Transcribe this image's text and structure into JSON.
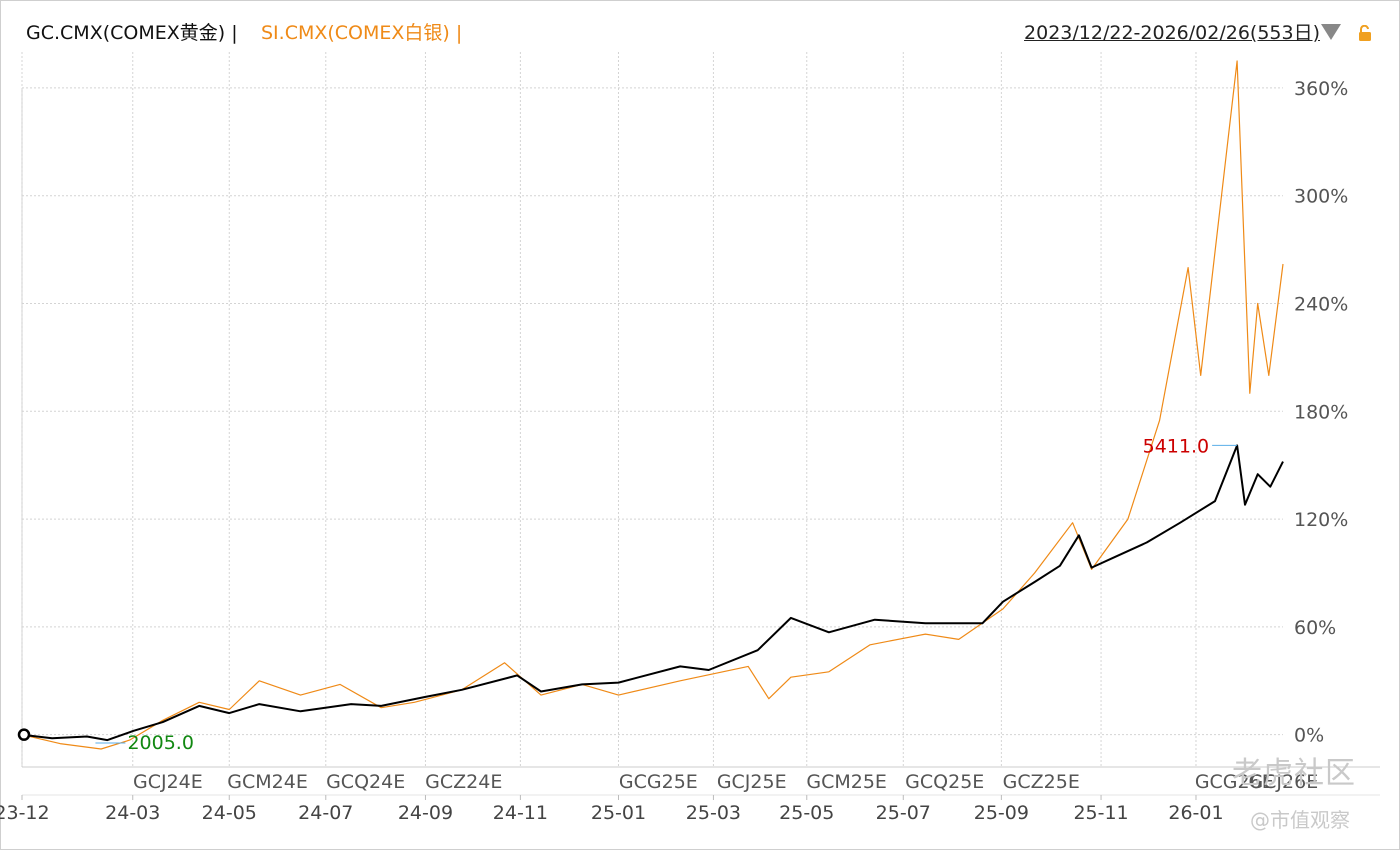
{
  "header": {
    "gold_title": "GC.CMX(COMEX黄金) |",
    "silver_title": "SI.CMX(COMEX白银) |",
    "range_label": "2023/12/22-2026/02/26(553日)",
    "dropdown_icon": "chevron-down-icon",
    "lock_icon": "unlock-icon"
  },
  "watermark": {
    "line1": "老虎社区",
    "line2": "@市值观察"
  },
  "chart_data": {
    "type": "line",
    "y_ticks": [
      0,
      60,
      120,
      180,
      240,
      300,
      360
    ],
    "y_tick_labels": [
      "0%",
      "60%",
      "120%",
      "180%",
      "240%",
      "300%",
      "360%"
    ],
    "ylim": [
      -18,
      380
    ],
    "xlim": [
      "2023-12-22",
      "2026-02-26"
    ],
    "x_ticks": [
      {
        "date": "2023-12-22",
        "label": "23-12"
      },
      {
        "date": "2024-03-01",
        "label": "24-03"
      },
      {
        "date": "2024-05-01",
        "label": "24-05"
      },
      {
        "date": "2024-07-01",
        "label": "24-07"
      },
      {
        "date": "2024-09-02",
        "label": "24-09"
      },
      {
        "date": "2024-11-01",
        "label": "24-11"
      },
      {
        "date": "2025-01-02",
        "label": "25-01"
      },
      {
        "date": "2025-03-03",
        "label": "25-03"
      },
      {
        "date": "2025-05-01",
        "label": "25-05"
      },
      {
        "date": "2025-07-01",
        "label": "25-07"
      },
      {
        "date": "2025-09-01",
        "label": "25-09"
      },
      {
        "date": "2025-11-03",
        "label": "25-11"
      },
      {
        "date": "2026-01-02",
        "label": "26-01"
      }
    ],
    "contract_markers": [
      {
        "date": "2024-03-27",
        "label": "GCJ24E"
      },
      {
        "date": "2024-05-29",
        "label": "GCM24E"
      },
      {
        "date": "2024-07-30",
        "label": "GCQ24E"
      },
      {
        "date": "2024-09-30",
        "label": "GCZ24E"
      },
      {
        "date": "2025-01-31",
        "label": "GCG25E"
      },
      {
        "date": "2025-03-31",
        "label": "GCJ25E"
      },
      {
        "date": "2025-05-30",
        "label": "GCM25E"
      },
      {
        "date": "2025-07-31",
        "label": "GCQ25E"
      },
      {
        "date": "2025-09-30",
        "label": "GCZ25E"
      },
      {
        "date": "2026-01-30",
        "label": "GCG26E"
      },
      {
        "date": "2026-03-02",
        "label": "GCJ26E"
      }
    ],
    "series": [
      {
        "name": "GC.CMX(COMEX黄金)",
        "color": "#000000",
        "points": [
          [
            "2023-12-22",
            0
          ],
          [
            "2024-01-10",
            -2
          ],
          [
            "2024-02-01",
            -1
          ],
          [
            "2024-02-14",
            -3
          ],
          [
            "2024-03-01",
            2
          ],
          [
            "2024-03-20",
            7
          ],
          [
            "2024-04-12",
            16
          ],
          [
            "2024-05-01",
            12
          ],
          [
            "2024-05-20",
            17
          ],
          [
            "2024-06-15",
            13
          ],
          [
            "2024-07-17",
            17
          ],
          [
            "2024-08-05",
            16
          ],
          [
            "2024-09-02",
            21
          ],
          [
            "2024-09-25",
            25
          ],
          [
            "2024-10-30",
            33
          ],
          [
            "2024-11-14",
            24
          ],
          [
            "2024-12-10",
            28
          ],
          [
            "2025-01-02",
            29
          ],
          [
            "2025-02-10",
            38
          ],
          [
            "2025-02-28",
            36
          ],
          [
            "2025-03-31",
            47
          ],
          [
            "2025-04-21",
            65
          ],
          [
            "2025-05-15",
            57
          ],
          [
            "2025-06-13",
            64
          ],
          [
            "2025-07-15",
            62
          ],
          [
            "2025-08-20",
            62
          ],
          [
            "2025-09-02",
            74
          ],
          [
            "2025-09-22",
            85
          ],
          [
            "2025-10-08",
            94
          ],
          [
            "2025-10-20",
            111
          ],
          [
            "2025-10-28",
            93
          ],
          [
            "2025-11-12",
            99
          ],
          [
            "2025-12-02",
            107
          ],
          [
            "2025-12-23",
            118
          ],
          [
            "2026-01-14",
            130
          ],
          [
            "2026-01-28",
            161
          ],
          [
            "2026-02-02",
            128
          ],
          [
            "2026-02-10",
            145
          ],
          [
            "2026-02-18",
            138
          ],
          [
            "2026-02-26",
            152
          ]
        ],
        "extreme_labels": [
          {
            "date": "2026-01-28",
            "value": 161,
            "label": "5411.0",
            "color": "#cc0000"
          },
          {
            "date": "2024-02-14",
            "value": -3,
            "label": "2005.0",
            "color": "#118811"
          }
        ]
      },
      {
        "name": "SI.CMX(COMEX白银)",
        "color": "#ef8a17",
        "points": [
          [
            "2023-12-22",
            0
          ],
          [
            "2024-01-15",
            -5
          ],
          [
            "2024-02-10",
            -8
          ],
          [
            "2024-02-28",
            -3
          ],
          [
            "2024-03-20",
            8
          ],
          [
            "2024-04-12",
            18
          ],
          [
            "2024-05-01",
            14
          ],
          [
            "2024-05-20",
            30
          ],
          [
            "2024-06-15",
            22
          ],
          [
            "2024-07-10",
            28
          ],
          [
            "2024-08-05",
            15
          ],
          [
            "2024-08-26",
            18
          ],
          [
            "2024-09-25",
            25
          ],
          [
            "2024-10-22",
            40
          ],
          [
            "2024-11-14",
            22
          ],
          [
            "2024-12-10",
            28
          ],
          [
            "2025-01-02",
            22
          ],
          [
            "2025-02-10",
            30
          ],
          [
            "2025-03-25",
            38
          ],
          [
            "2025-04-07",
            20
          ],
          [
            "2025-04-21",
            32
          ],
          [
            "2025-05-15",
            35
          ],
          [
            "2025-06-10",
            50
          ],
          [
            "2025-07-15",
            56
          ],
          [
            "2025-08-05",
            53
          ],
          [
            "2025-09-02",
            70
          ],
          [
            "2025-09-22",
            90
          ],
          [
            "2025-10-16",
            118
          ],
          [
            "2025-10-28",
            92
          ],
          [
            "2025-11-20",
            120
          ],
          [
            "2025-12-10",
            175
          ],
          [
            "2025-12-28",
            260
          ],
          [
            "2026-01-05",
            200
          ],
          [
            "2026-01-28",
            375
          ],
          [
            "2026-02-05",
            190
          ],
          [
            "2026-02-10",
            240
          ],
          [
            "2026-02-17",
            200
          ],
          [
            "2026-02-26",
            262
          ]
        ]
      }
    ]
  }
}
